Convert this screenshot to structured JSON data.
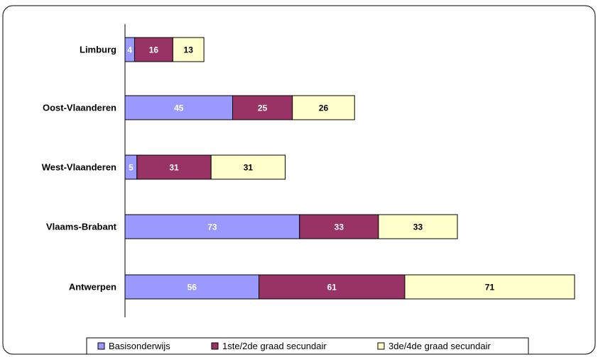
{
  "chart_data": {
    "type": "bar",
    "orientation": "horizontal",
    "stacked": true,
    "title": "",
    "xlabel": "",
    "ylabel": "",
    "categories": [
      "Limburg",
      "Oost-Vlaanderen",
      "West-Vlaanderen",
      "Vlaams-Brabant",
      "Antwerpen"
    ],
    "series": [
      {
        "name": "Basisonderwijs",
        "values": [
          4,
          45,
          5,
          73,
          56
        ],
        "color": "#9999ff",
        "label_color": "#ffffff",
        "label_bg": "#9999ff"
      },
      {
        "name": "1ste/2de graad secundair",
        "values": [
          16,
          25,
          31,
          33,
          61
        ],
        "color": "#993366",
        "label_color": "#ffffff",
        "label_bg": "#993366"
      },
      {
        "name": "3de/4de graad secundair",
        "values": [
          13,
          26,
          31,
          33,
          71
        ],
        "color": "#ffffcc",
        "label_color": "#000000",
        "label_bg": "#ffffcc"
      }
    ],
    "xlim": [
      0,
      188
    ],
    "grid": false,
    "legend_position": "bottom"
  }
}
